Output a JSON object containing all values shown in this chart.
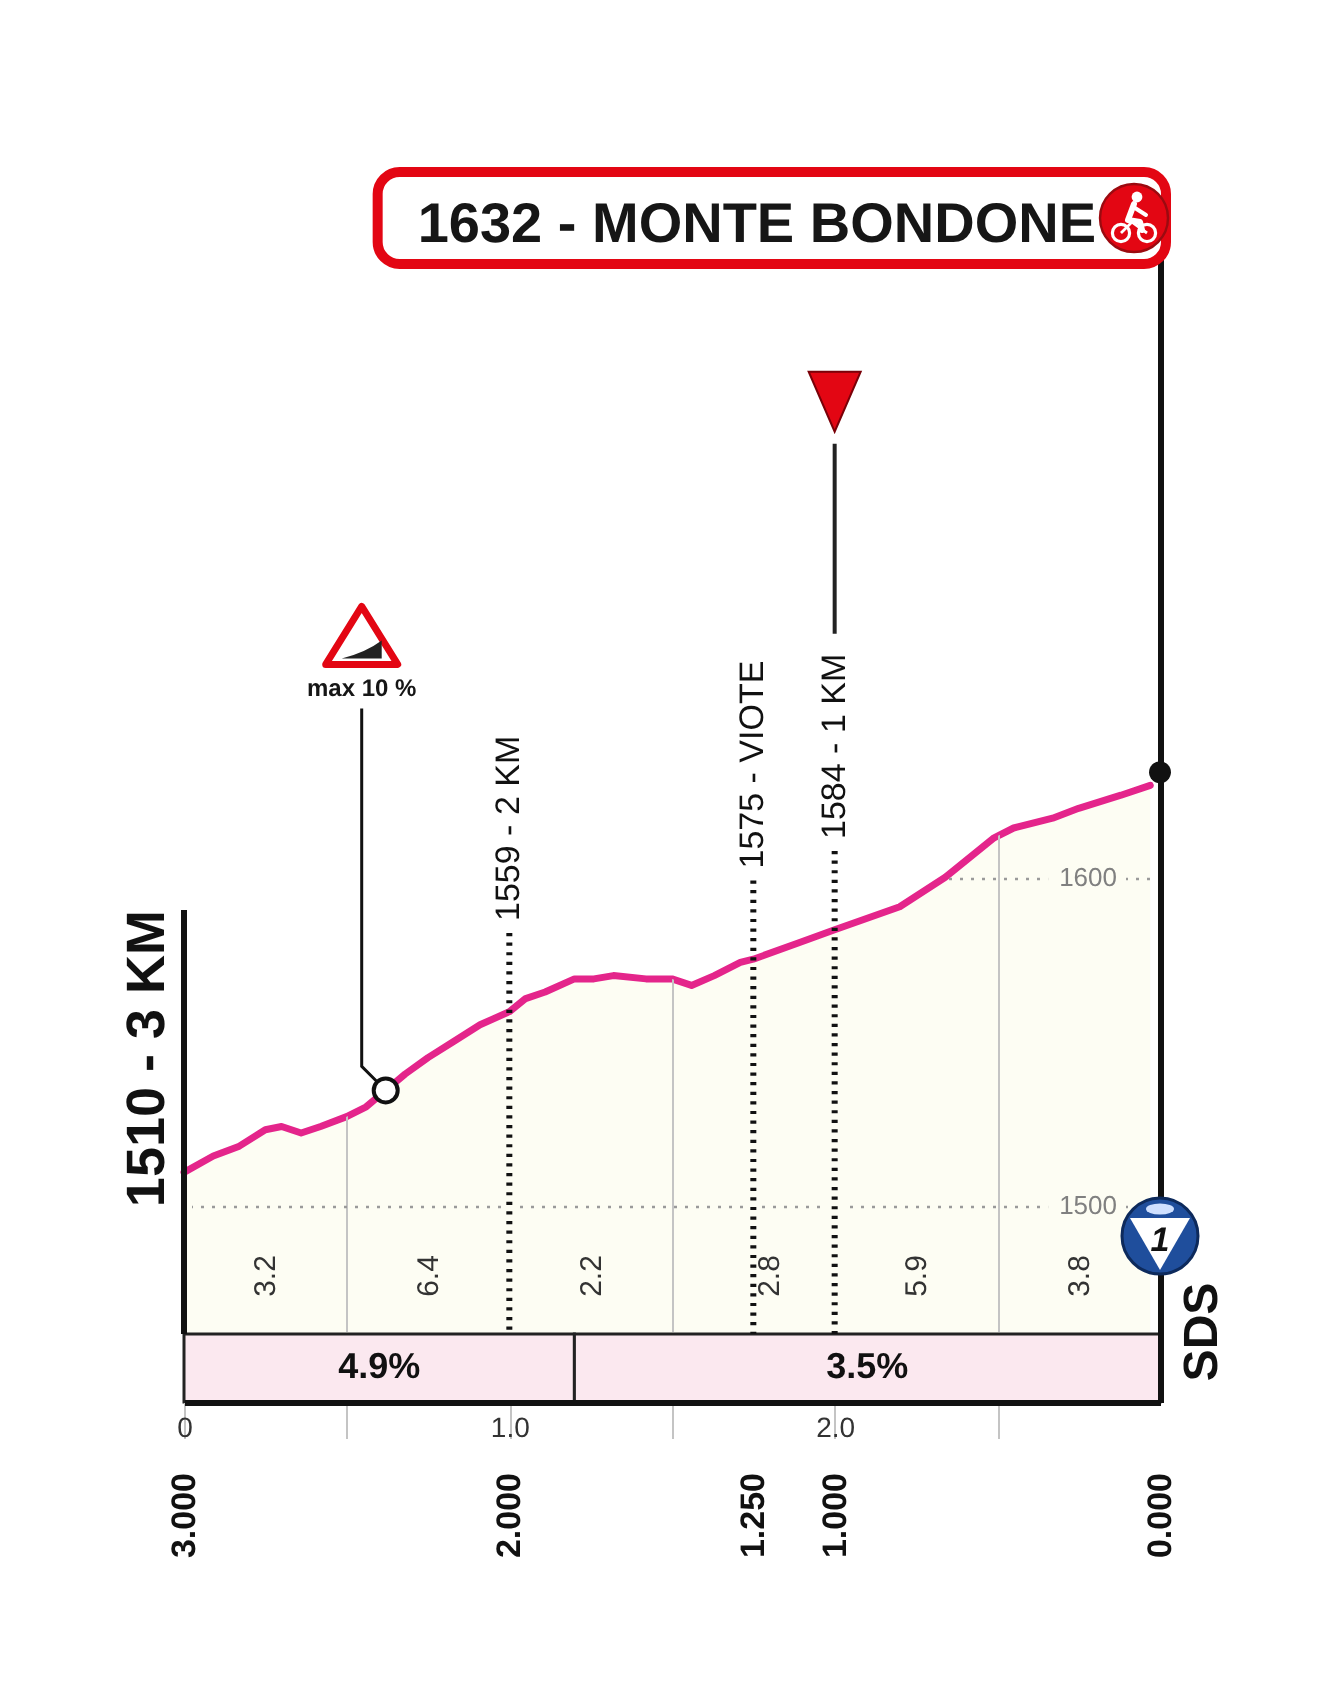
{
  "chart_data": {
    "type": "area",
    "title": "1632 - MONTE BONDONE",
    "x": [
      0,
      0.09,
      0.17,
      0.25,
      0.3,
      0.36,
      0.42,
      0.5,
      0.56,
      0.62,
      0.68,
      0.75,
      0.83,
      0.91,
      1,
      1.05,
      1.11,
      1.2,
      1.26,
      1.32,
      1.42,
      1.5,
      1.56,
      1.63,
      1.71,
      1.75,
      1.89,
      2,
      2.2,
      2.34,
      2.49,
      2.55,
      2.67,
      2.75,
      2.88,
      2.97
    ],
    "series": [
      {
        "color": "#e4258b",
        "values": [
          1510,
          1515,
          1518,
          1523,
          1524,
          1522,
          1524,
          1527,
          1530,
          1535,
          1540,
          1545,
          1550,
          1555,
          1559,
          1563,
          1565,
          1569,
          1569,
          1570,
          1569,
          1569,
          1567,
          1570,
          1574,
          1575,
          1580,
          1584,
          1591,
          1600,
          1612,
          1615,
          1618,
          1621,
          1625,
          1628
        ]
      },
      {
        "type": "scatter",
        "color": "#111111",
        "x": [
          3
        ],
        "values": [
          1632
        ]
      }
    ],
    "xlim": [
      0,
      3
    ],
    "xticks": [
      0,
      {
        "value": 0.5,
        "label": null
      },
      {
        "value": 1,
        "label": "1.0"
      },
      {
        "value": 1.5,
        "label": null
      },
      {
        "value": 2,
        "label": "2.0"
      },
      {
        "value": 2.5,
        "label": null
      }
    ],
    "x2lim": [
      3,
      0
    ],
    "x2ticks": [
      {
        "value": 3,
        "label": "3.000"
      },
      {
        "value": 2,
        "label": "2.000"
      },
      {
        "value": 1.25,
        "label": "1.250"
      },
      {
        "value": 1,
        "label": "1.000"
      },
      {
        "value": 0,
        "label": "0.000"
      }
    ],
    "ylim": [
      1440,
      1790
    ],
    "yticks": [
      1500,
      1600
    ],
    "grid": true,
    "ref_lines": [
      {
        "axis": "x",
        "value": 0,
        "label": "1510 - 3 KM",
        "line_style": "solid"
      },
      {
        "axis": "x",
        "value": 1,
        "label": "1559 - 2 KM",
        "line_style": "dotted"
      },
      {
        "axis": "x",
        "value": 1.75,
        "label": "1575 - VIOTE",
        "line_style": "dotted"
      },
      {
        "axis": "x",
        "value": 2,
        "label": "1584 - 1 KM",
        "line_style": "dotted"
      }
    ],
    "bands": [
      {
        "axis": "x",
        "from": 0,
        "to": 1.2,
        "label": "4.9%",
        "color": "#fbe8ef"
      },
      {
        "axis": "x",
        "from": 1.2,
        "to": 3,
        "label": "3.5%",
        "color": "#fbe8ef"
      }
    ],
    "annotations": [
      {
        "text": "max 10 %",
        "x": 0.62,
        "y": 1535
      },
      "1",
      "SDS",
      "3.2",
      "6.4",
      "2.2",
      "2.8",
      "5.9",
      "3.8"
    ]
  }
}
